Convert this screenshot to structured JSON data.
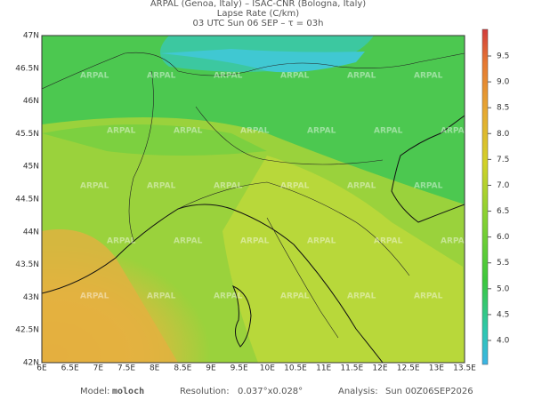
{
  "header": {
    "lines": [
      "ARPAL (Genoa, Italy)  –  ISAC-CNR (Bologna, Italy)",
      "Lapse Rate (C/km)",
      "03 UTC Sun 06 SEP  –  τ = 03h"
    ]
  },
  "map": {
    "lat_labels": [
      "47N",
      "46.5N",
      "46N",
      "45.5N",
      "45N",
      "44.5N",
      "44N",
      "43.5N",
      "43N",
      "42.5N",
      "42N"
    ],
    "lon_labels": [
      "6E",
      "6.5E",
      "7E",
      "7.5E",
      "8E",
      "8.5E",
      "9E",
      "9.5E",
      "10E",
      "10.5E",
      "11E",
      "11.5E",
      "12E",
      "12.5E",
      "13E",
      "13.5E"
    ],
    "watermark": "ARPAL"
  },
  "colorbar": {
    "labels": [
      "9.5",
      "9.0",
      "8.5",
      "8.0",
      "7.5",
      "7.0",
      "6.5",
      "6.0",
      "5.5",
      "5.0",
      "4.5",
      "4.0"
    ]
  },
  "footer": {
    "model_label": "Model:",
    "model": "moloch",
    "resolution_label": "Resolution:",
    "resolution": "0.037°x0.028°",
    "analysis_label": "Analysis:",
    "analysis": "Sun 00Z06SEP2026"
  }
}
